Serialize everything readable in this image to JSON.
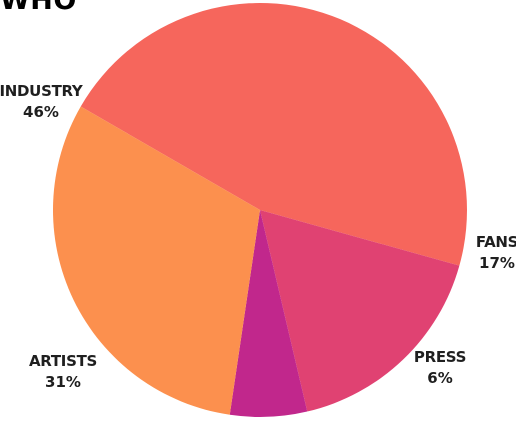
{
  "header": {
    "title_fragment": "WHO"
  },
  "chart_data": {
    "type": "pie",
    "title": "",
    "categories": [
      "INDUSTRY",
      "FANS",
      "PRESS",
      "ARTISTS"
    ],
    "values": [
      46,
      17,
      6,
      31
    ],
    "value_labels": [
      "46%",
      "17%",
      "6%",
      "31%"
    ],
    "colors": [
      "#F6665C",
      "#E04272",
      "#C1278C",
      "#FC904E"
    ],
    "start_angle_deg": 210,
    "direction": "clockwise",
    "legend": "none",
    "grid": false
  }
}
